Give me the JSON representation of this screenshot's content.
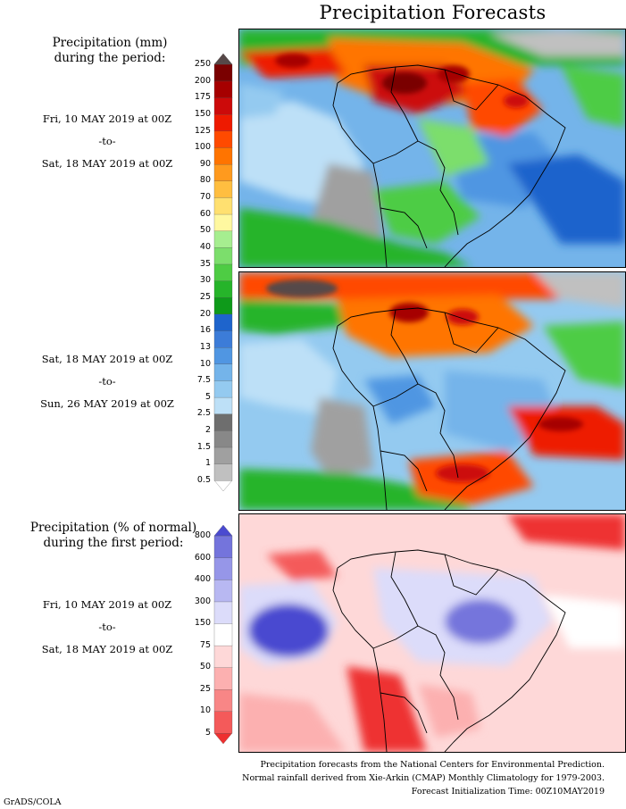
{
  "title": "Precipitation Forecasts",
  "panel1": {
    "heading_line1": "Precipitation (mm)",
    "heading_line2": "during the period:",
    "start": "Fri, 10 MAY 2019 at 00Z",
    "sep": "-to-",
    "end": "Sat, 18 MAY 2019 at 00Z"
  },
  "panel2": {
    "start": "Sat, 18 MAY 2019 at 00Z",
    "sep": "-to-",
    "end": "Sun, 26 MAY 2019 at 00Z"
  },
  "panel3": {
    "heading_line1": "Precipitation (% of normal)",
    "heading_line2": "during the first period:",
    "start": "Fri, 10 MAY 2019 at 00Z",
    "sep": "-to-",
    "end": "Sat, 18 MAY 2019 at 00Z"
  },
  "precip_scale": {
    "labels": [
      "250",
      "200",
      "175",
      "150",
      "125",
      "100",
      "90",
      "80",
      "70",
      "60",
      "50",
      "40",
      "35",
      "30",
      "25",
      "20",
      "16",
      "13",
      "10",
      "7.5",
      "5",
      "2.5",
      "2",
      "1.5",
      "1",
      "0.5"
    ],
    "colors": [
      "#ffffff",
      "#c0c0c0",
      "#a0a0a0",
      "#888888",
      "#6e6e6e",
      "#bde0f7",
      "#94caf0",
      "#74b4ea",
      "#5096e2",
      "#3c7cd8",
      "#1e64cc",
      "#0e9a1a",
      "#26b42a",
      "#4ecc44",
      "#7cde6c",
      "#a6ee90",
      "#fff8a0",
      "#ffe070",
      "#ffbe40",
      "#ff9a1e",
      "#ff7400",
      "#ff4a00",
      "#ee1a00",
      "#cc0a0a",
      "#a60000",
      "#7a0000",
      "#564848"
    ]
  },
  "percent_scale": {
    "labels": [
      "800",
      "600",
      "400",
      "300",
      "150",
      "75",
      "50",
      "25",
      "10",
      "5"
    ],
    "colors": [
      "#ee3030",
      "#f45a5a",
      "#f88686",
      "#fcb0b0",
      "#fed8d8",
      "#ffffff",
      "#dcdcfa",
      "#b8b8f2",
      "#9696e8",
      "#7474dc",
      "#4a4ad0"
    ]
  },
  "footer": {
    "line1": "Precipitation forecasts from the National Centers for Environmental Prediction.",
    "line2": "Normal rainfall derived from Xie-Arkin (CMAP) Monthly Climatology for 1979-2003.",
    "line3": "Forecast Initialization Time: 00Z10MAY2019"
  },
  "credit": "GrADS/COLA"
}
